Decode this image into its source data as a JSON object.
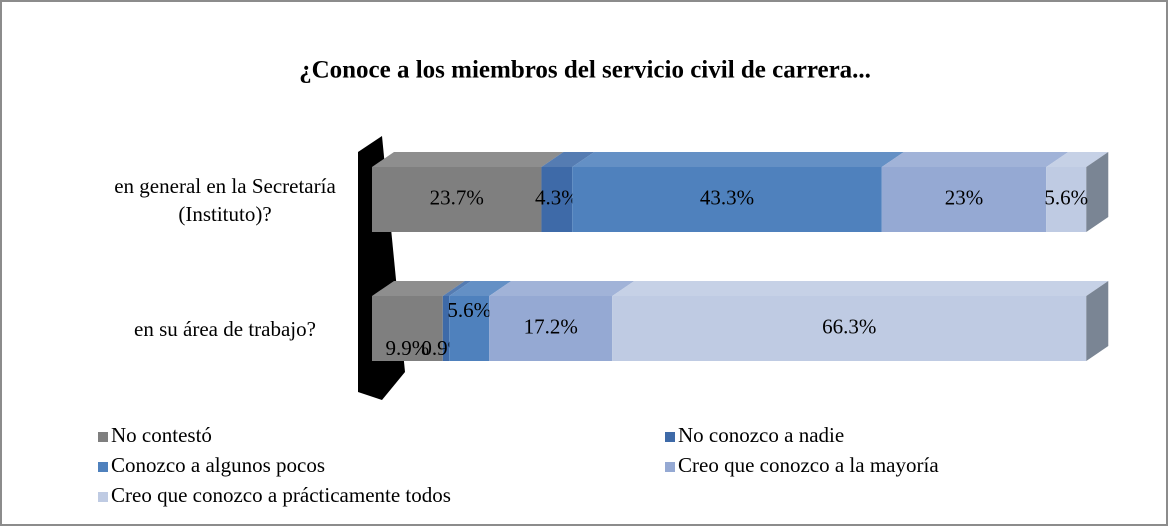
{
  "chart_data": {
    "type": "bar",
    "orientation": "horizontal",
    "stacked": true,
    "title": "¿Conoce a los miembros del servicio civil de carrera...",
    "categories": [
      "en general en la Secretaría (Instituto)?",
      "en su área de trabajo?"
    ],
    "xlim": [
      0,
      100
    ],
    "series": [
      {
        "name": "No contestó",
        "color": "#7f7f7f",
        "values": [
          23.7,
          9.9
        ],
        "value_labels": [
          "23.7%",
          "9.9%"
        ]
      },
      {
        "name": "No conozco a nadie",
        "color": "#3e6aa8",
        "values": [
          4.3,
          0.9
        ],
        "value_labels": [
          "4.3%",
          "0.9%"
        ]
      },
      {
        "name": "Conozco a algunos pocos",
        "color": "#4f81bd",
        "values": [
          43.3,
          5.6
        ],
        "value_labels": [
          "43.3%",
          "5.6%"
        ]
      },
      {
        "name": "Creo que conozco a la mayoría",
        "color": "#95a9d3",
        "values": [
          23,
          17.2
        ],
        "value_labels": [
          "23%",
          "17.2%"
        ]
      },
      {
        "name": "Creo que conozco a prácticamente todos",
        "color": "#bfcbe3",
        "values": [
          5.6,
          66.3
        ],
        "value_labels": [
          "5.6%",
          "66.3%"
        ]
      }
    ]
  }
}
